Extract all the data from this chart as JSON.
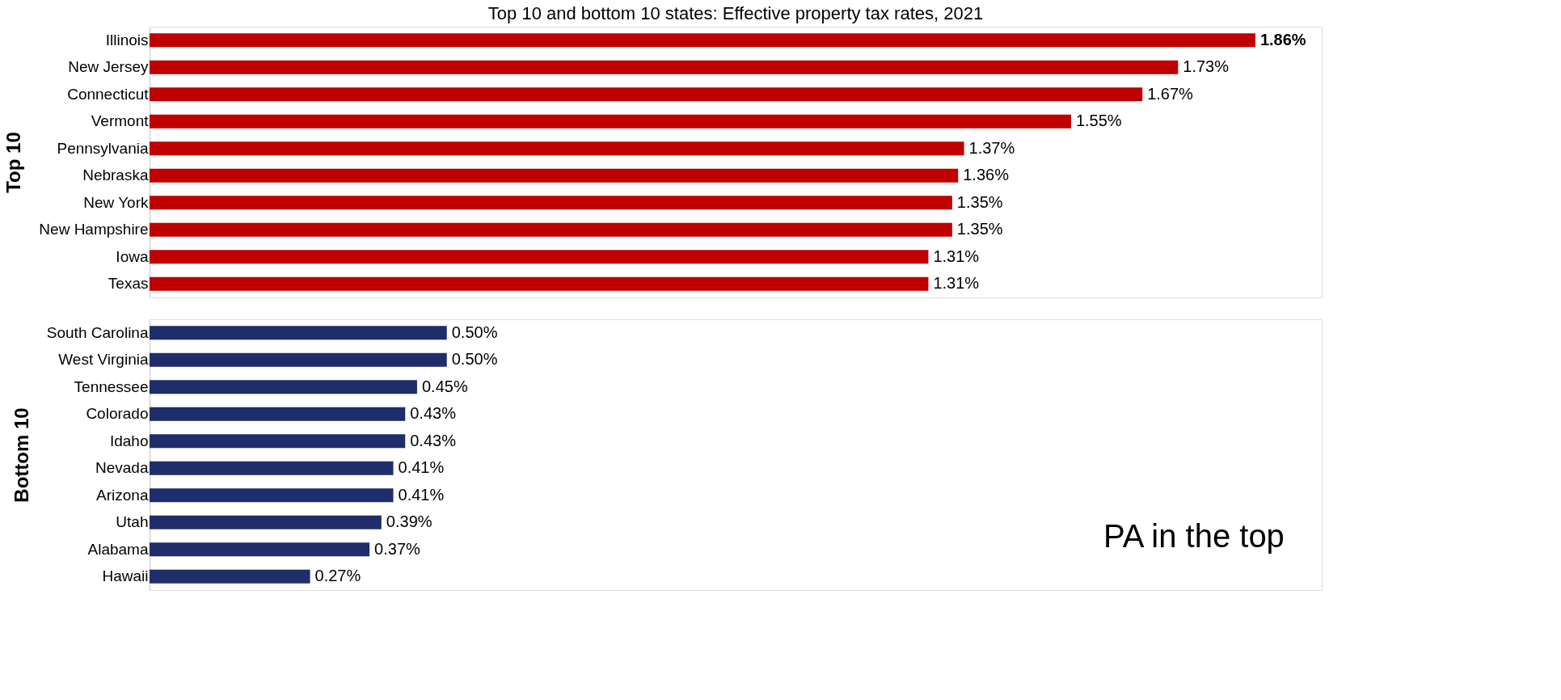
{
  "chart_data": [
    {
      "type": "bar",
      "orientation": "horizontal",
      "title": "Top 10 and bottom 10 states: Effective property tax rates, 2021",
      "ylabel": "Top 10",
      "categories": [
        "Illinois",
        "New Jersey",
        "Connecticut",
        "Vermont",
        "Pennsylvania",
        "Nebraska",
        "New York",
        "New Hampshire",
        "Iowa",
        "Texas"
      ],
      "series": [
        {
          "color": "#c00000",
          "values": [
            1.86,
            1.73,
            1.67,
            1.55,
            1.37,
            1.36,
            1.35,
            1.35,
            1.31,
            1.31
          ],
          "value_labels": [
            "1.86%",
            "1.73%",
            "1.67%",
            "1.55%",
            "1.37%",
            "1.36%",
            "1.35%",
            "1.35%",
            "1.31%",
            "1.31%"
          ]
        }
      ]
    },
    {
      "type": "bar",
      "orientation": "horizontal",
      "ylabel": "Bottom 10",
      "categories": [
        "South Carolina",
        "West Virginia",
        "Tennessee",
        "Colorado",
        "Idaho",
        "Nevada",
        "Arizona",
        "Utah",
        "Alabama",
        "Hawaii"
      ],
      "series": [
        {
          "color": "#1f2d6b",
          "values": [
            0.5,
            0.5,
            0.45,
            0.43,
            0.43,
            0.41,
            0.41,
            0.39,
            0.37,
            0.27
          ],
          "value_labels": [
            "0.50%",
            "0.50%",
            "0.45%",
            "0.43%",
            "0.43%",
            "0.41%",
            "0.41%",
            "0.39%",
            "0.37%",
            "0.27%"
          ]
        }
      ],
      "annotations": [
        "PA in the top"
      ]
    }
  ]
}
